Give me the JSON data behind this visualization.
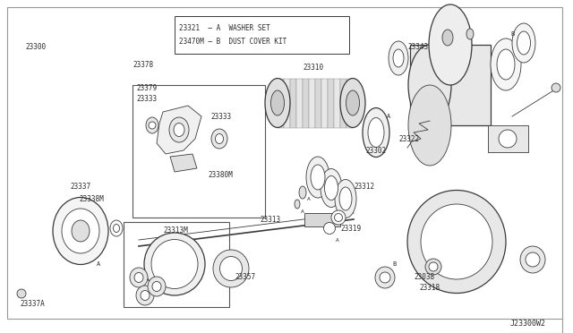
{
  "bg_color": "#ffffff",
  "line_color": "#3a3a3a",
  "text_color": "#2a2a2a",
  "watermark": "J23300W2",
  "legend_lines": [
    "23321  — A  WASHER SET",
    "23470M — B  DUST COVER KIT"
  ],
  "figsize": [
    6.4,
    3.72
  ],
  "dpi": 100
}
